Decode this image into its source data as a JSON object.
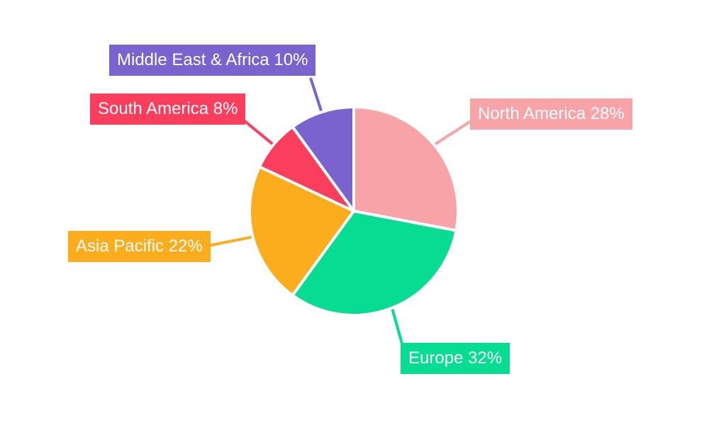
{
  "chart_data": {
    "type": "pie",
    "title": "",
    "legend": "none",
    "categories": [
      "North America",
      "Europe",
      "Asia Pacific",
      "South America",
      "Middle East & Africa"
    ],
    "values": [
      28,
      32,
      22,
      8,
      10
    ],
    "unit": "%",
    "total": 100,
    "start_angle": "12-o-clock",
    "direction": "clockwise",
    "background_color": "#ffffff",
    "label_text_color": "#ffffff",
    "slice_gap_color": "#ffffff",
    "slices": [
      {
        "label": "North America",
        "value": 28,
        "display": "North America 28%",
        "color": "#f7a3a8"
      },
      {
        "label": "Europe",
        "value": 32,
        "display": "Europe 32%",
        "color": "#06dc92"
      },
      {
        "label": "Asia Pacific",
        "value": 22,
        "display": "Asia Pacific 22%",
        "color": "#fbad1d"
      },
      {
        "label": "South America",
        "value": 8,
        "display": "South America 8%",
        "color": "#fb3d5e"
      },
      {
        "label": "Middle East & Africa",
        "value": 10,
        "display": "Middle East & Africa 10%",
        "color": "#7a63cf"
      }
    ]
  }
}
